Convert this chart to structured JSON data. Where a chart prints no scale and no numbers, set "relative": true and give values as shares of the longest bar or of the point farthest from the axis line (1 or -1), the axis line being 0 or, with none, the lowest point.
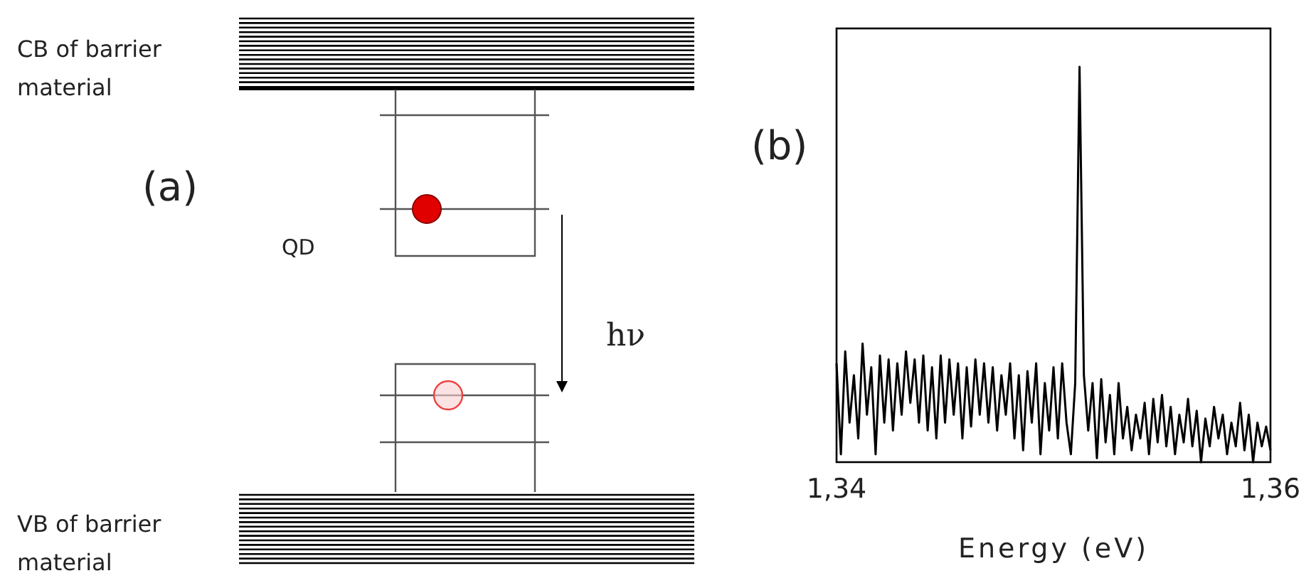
{
  "chart_data": [
    {
      "type": "other",
      "annotations": [
        "CB of barrier material",
        "(a)",
        "QD",
        "hν",
        "VB of barrier material"
      ]
    },
    {
      "type": "line",
      "relative": true,
      "xlabel": "Energy (eV)",
      "annotations": [
        "(b)"
      ],
      "xlim": [
        1.34,
        1.36
      ],
      "xticks": [
        {
          "value": 1.34,
          "label": "1,34"
        },
        {
          "value": 1.36,
          "label": "1,36"
        }
      ],
      "tick_labels": "x",
      "marker": "none",
      "line_style": "solid",
      "x": [
        1.34,
        1.3402,
        1.3404,
        1.3406,
        1.3408,
        1.341,
        1.3412,
        1.3414,
        1.3416,
        1.3418,
        1.342,
        1.3422,
        1.3424,
        1.3426,
        1.3428,
        1.343,
        1.3432,
        1.3434,
        1.3436,
        1.3438,
        1.344,
        1.3442,
        1.3444,
        1.3446,
        1.3448,
        1.345,
        1.3452,
        1.3454,
        1.3456,
        1.3458,
        1.346,
        1.3462,
        1.3464,
        1.3466,
        1.3468,
        1.347,
        1.3472,
        1.3474,
        1.3476,
        1.3478,
        1.348,
        1.3482,
        1.3484,
        1.3486,
        1.3488,
        1.349,
        1.3492,
        1.3494,
        1.3496,
        1.3498,
        1.35,
        1.3502,
        1.3504,
        1.3506,
        1.3508,
        1.351,
        1.3512,
        1.3514,
        1.3516,
        1.3518,
        1.352,
        1.3522,
        1.3524,
        1.3526,
        1.3528,
        1.353,
        1.3532,
        1.3534,
        1.3536,
        1.3538,
        1.354,
        1.3542,
        1.3544,
        1.3546,
        1.3548,
        1.355,
        1.3552,
        1.3554,
        1.3556,
        1.3558,
        1.356,
        1.3562,
        1.3564,
        1.3566,
        1.3568,
        1.357,
        1.3572,
        1.3574,
        1.3576,
        1.3578,
        1.358,
        1.3582,
        1.3584,
        1.3586,
        1.3588,
        1.359,
        1.3592,
        1.3594,
        1.3596,
        1.3598,
        1.36
      ],
      "series": [
        {
          "color": "#000000",
          "values": [
            0.25,
            0.02,
            0.28,
            0.1,
            0.22,
            0.06,
            0.3,
            0.12,
            0.24,
            0.02,
            0.27,
            0.1,
            0.26,
            0.08,
            0.25,
            0.12,
            0.28,
            0.15,
            0.26,
            0.1,
            0.27,
            0.08,
            0.24,
            0.06,
            0.27,
            0.1,
            0.26,
            0.12,
            0.25,
            0.06,
            0.24,
            0.09,
            0.26,
            0.12,
            0.25,
            0.1,
            0.24,
            0.08,
            0.22,
            0.12,
            0.25,
            0.06,
            0.22,
            0.03,
            0.23,
            0.1,
            0.25,
            0.02,
            0.2,
            0.08,
            0.24,
            0.06,
            0.25,
            0.1,
            0.02,
            0.2,
            1.0,
            0.22,
            0.08,
            0.2,
            0.01,
            0.21,
            0.05,
            0.17,
            0.02,
            0.2,
            0.06,
            0.14,
            0.03,
            0.12,
            0.06,
            0.15,
            0.02,
            0.16,
            0.05,
            0.17,
            0.04,
            0.14,
            0.02,
            0.12,
            0.05,
            0.16,
            0.04,
            0.13,
            0.0,
            0.11,
            0.04,
            0.14,
            0.06,
            0.12,
            0.02,
            0.1,
            0.04,
            0.15,
            0.03,
            0.12,
            0.0,
            0.1,
            0.04,
            0.09,
            0.03
          ]
        }
      ]
    }
  ]
}
